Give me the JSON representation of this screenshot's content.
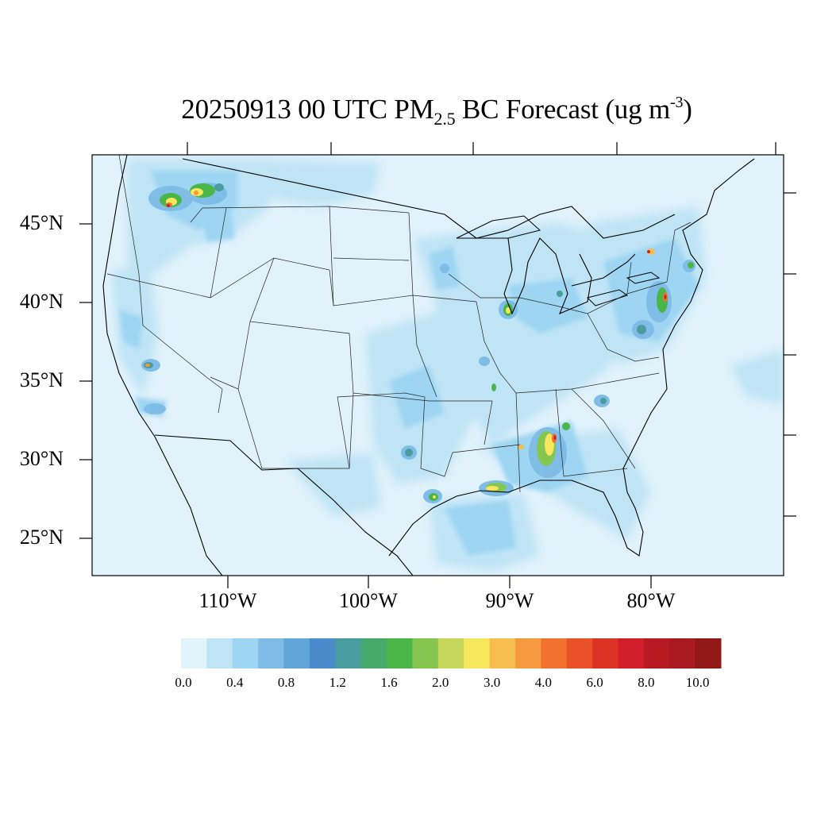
{
  "title": {
    "prefix": "20250913 00 UTC PM",
    "subscript": "2.5",
    "middle": " BC Forecast (ug m",
    "superscript": "-3",
    "suffix": ")"
  },
  "lat_labels": [
    "45°N",
    "40°N",
    "35°N",
    "30°N",
    "25°N"
  ],
  "lon_labels": [
    "110°W",
    "100°W",
    "90°W",
    "80°W"
  ],
  "colorbar": {
    "labels": [
      "0.0",
      "0.4",
      "0.8",
      "1.2",
      "1.6",
      "2.0",
      "3.0",
      "4.0",
      "6.0",
      "8.0",
      "10.0"
    ],
    "colors": [
      "#e0f3fb",
      "#bfe4f6",
      "#9dd5f2",
      "#7fbde6",
      "#61a6d8",
      "#4a8bcb",
      "#4a9d9e",
      "#47a96b",
      "#4ab649",
      "#85c651",
      "#c6d65b",
      "#f7e75c",
      "#f7bd4f",
      "#f59a3e",
      "#f2712f",
      "#e95229",
      "#dd3327",
      "#d11f29",
      "#b81a24",
      "#a91920",
      "#921818"
    ]
  },
  "map_colors": {
    "background": "#e1f2fb",
    "low": "#bfe4f6",
    "mid": "#9dd5f2",
    "elevated": "#7fbde6",
    "teal": "#4a9d9e",
    "green": "#4ab649",
    "yellow": "#f7e75c",
    "orange": "#f59a3e",
    "red": "#d11f29"
  }
}
